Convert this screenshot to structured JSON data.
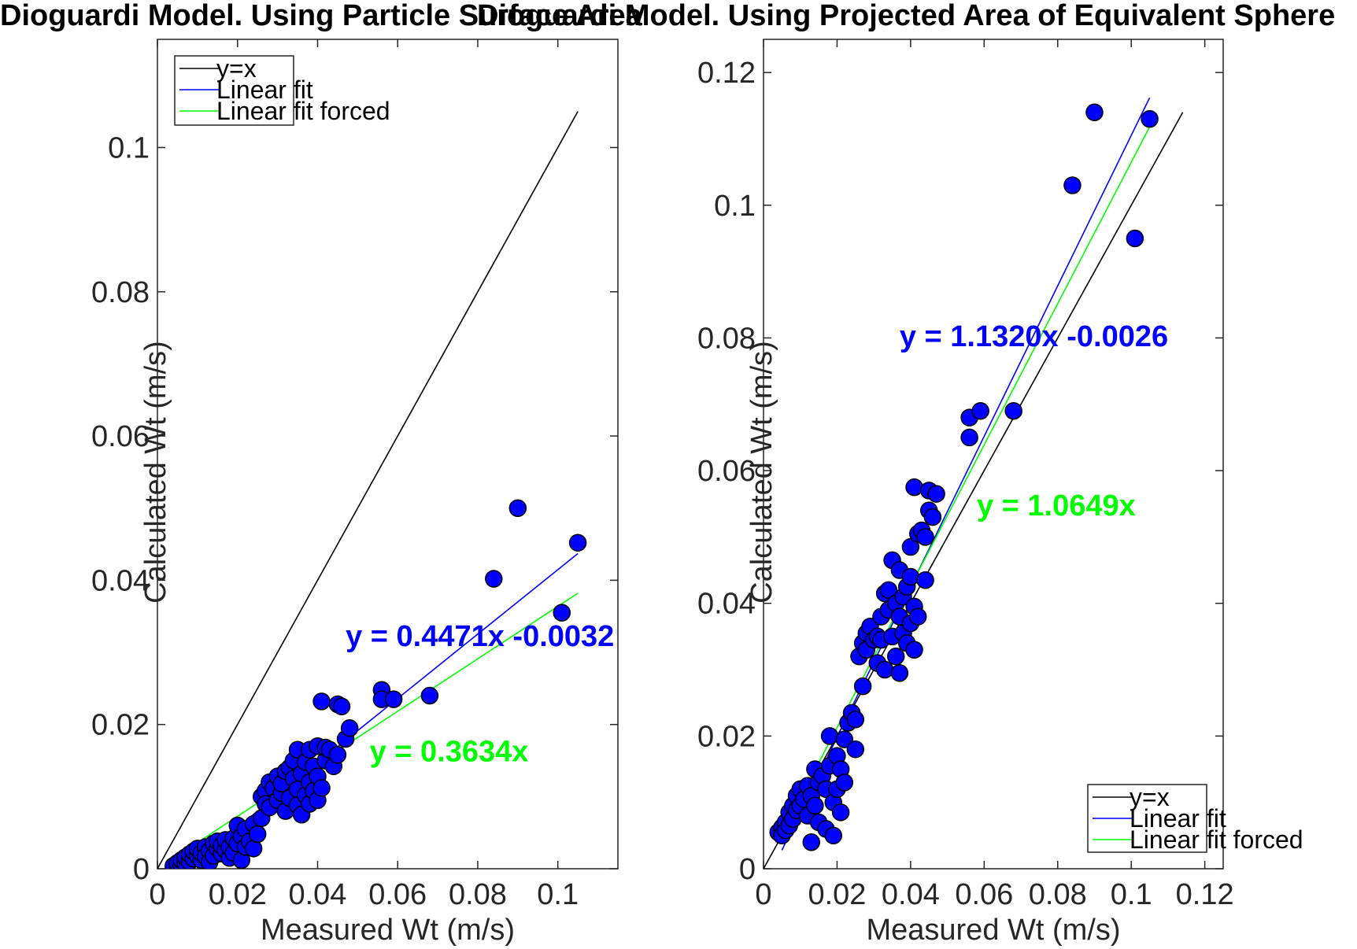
{
  "chart_data": [
    {
      "type": "scatter",
      "title": "Dioguardi Model. Using Particle Surface Area",
      "xlabel": "Measured Wt (m/s)",
      "ylabel": "Calculated Wt (m/s)",
      "xlim": [
        0,
        0.115
      ],
      "ylim": [
        0,
        0.115
      ],
      "xticks": [
        0,
        0.02,
        0.04,
        0.06,
        0.08,
        0.1
      ],
      "xtick_labels": [
        "0",
        "0.02",
        "0.04",
        "0.06",
        "0.08",
        "0.1"
      ],
      "yticks": [
        0,
        0.02,
        0.04,
        0.06,
        0.08,
        0.1
      ],
      "ytick_labels": [
        "0",
        "0.02",
        "0.04",
        "0.06",
        "0.08",
        "0.1"
      ],
      "grid": false,
      "legend_position": "top-left",
      "legend": [
        "y=x",
        "Linear fit",
        "Linear fit forced"
      ],
      "colors": {
        "identity": "#000000",
        "linear_fit": "#0000ff",
        "forced_fit": "#00ff00",
        "points": "#0000ff"
      },
      "lines": [
        {
          "name": "y=x",
          "color": "#000000",
          "points": [
            [
              0,
              0
            ],
            [
              0.105,
              0.105
            ]
          ]
        },
        {
          "name": "Linear fit",
          "color": "#0000ff",
          "points": [
            [
              0.004,
              -0.0014
            ],
            [
              0.105,
              0.0437
            ]
          ]
        },
        {
          "name": "Linear fit forced",
          "color": "#00ff00",
          "points": [
            [
              0.004,
              0.00145
            ],
            [
              0.105,
              0.0382
            ]
          ]
        }
      ],
      "annotations": [
        {
          "text": "y = 0.4471x -0.0032",
          "color": "#0000ff",
          "x": 0.047,
          "y": 0.0323
        },
        {
          "text": "y = 0.3634x",
          "color": "#00ff00",
          "x": 0.053,
          "y": 0.0163
        }
      ],
      "points": [
        [
          0.004,
          0.0004
        ],
        [
          0.005,
          0.0006
        ],
        [
          0.005,
          0.0008
        ],
        [
          0.006,
          0.0005
        ],
        [
          0.006,
          0.0012
        ],
        [
          0.007,
          0.0007
        ],
        [
          0.007,
          0.0016
        ],
        [
          0.008,
          0.001
        ],
        [
          0.008,
          0.002
        ],
        [
          0.009,
          0.0014
        ],
        [
          0.009,
          0.0024
        ],
        [
          0.01,
          0.0018
        ],
        [
          0.01,
          0.0028
        ],
        [
          0.011,
          0.0012
        ],
        [
          0.011,
          0.0022
        ],
        [
          0.012,
          0.003
        ],
        [
          0.012,
          0.0017
        ],
        [
          0.013,
          0.0025
        ],
        [
          0.013,
          0.0009
        ],
        [
          0.014,
          0.0035
        ],
        [
          0.014,
          0.0018
        ],
        [
          0.015,
          0.0028
        ],
        [
          0.015,
          0.0038
        ],
        [
          0.016,
          0.0021
        ],
        [
          0.016,
          0.0032
        ],
        [
          0.017,
          0.0026
        ],
        [
          0.017,
          0.004
        ],
        [
          0.018,
          0.0015
        ],
        [
          0.018,
          0.003
        ],
        [
          0.019,
          0.0042
        ],
        [
          0.019,
          0.0022
        ],
        [
          0.02,
          0.0035
        ],
        [
          0.02,
          0.006
        ],
        [
          0.021,
          0.0045
        ],
        [
          0.021,
          0.0012
        ],
        [
          0.022,
          0.003
        ],
        [
          0.022,
          0.0055
        ],
        [
          0.023,
          0.0038
        ],
        [
          0.024,
          0.0062
        ],
        [
          0.024,
          0.0028
        ],
        [
          0.025,
          0.0048
        ],
        [
          0.026,
          0.01
        ],
        [
          0.026,
          0.007
        ],
        [
          0.027,
          0.0108
        ],
        [
          0.027,
          0.009
        ],
        [
          0.028,
          0.012
        ],
        [
          0.028,
          0.0085
        ],
        [
          0.029,
          0.0112
        ],
        [
          0.03,
          0.0095
        ],
        [
          0.03,
          0.0128
        ],
        [
          0.031,
          0.0105
        ],
        [
          0.031,
          0.0118
        ],
        [
          0.032,
          0.0135
        ],
        [
          0.032,
          0.008
        ],
        [
          0.033,
          0.014
        ],
        [
          0.033,
          0.0098
        ],
        [
          0.034,
          0.0125
        ],
        [
          0.034,
          0.015
        ],
        [
          0.035,
          0.011
        ],
        [
          0.035,
          0.0088
        ],
        [
          0.035,
          0.0165
        ],
        [
          0.036,
          0.0132
        ],
        [
          0.036,
          0.0075
        ],
        [
          0.037,
          0.0148
        ],
        [
          0.037,
          0.0102
        ],
        [
          0.038,
          0.0165
        ],
        [
          0.038,
          0.012
        ],
        [
          0.038,
          0.009
        ],
        [
          0.039,
          0.0142
        ],
        [
          0.039,
          0.0108
        ],
        [
          0.04,
          0.017
        ],
        [
          0.04,
          0.0128
        ],
        [
          0.04,
          0.0095
        ],
        [
          0.041,
          0.0232
        ],
        [
          0.041,
          0.0112
        ],
        [
          0.042,
          0.015
        ],
        [
          0.042,
          0.0168
        ],
        [
          0.043,
          0.0165
        ],
        [
          0.044,
          0.0142
        ],
        [
          0.045,
          0.0158
        ],
        [
          0.045,
          0.0228
        ],
        [
          0.046,
          0.0225
        ],
        [
          0.047,
          0.018
        ],
        [
          0.048,
          0.0195
        ],
        [
          0.056,
          0.0248
        ],
        [
          0.056,
          0.0235
        ],
        [
          0.059,
          0.0235
        ],
        [
          0.068,
          0.024
        ],
        [
          0.084,
          0.0402
        ],
        [
          0.09,
          0.05
        ],
        [
          0.101,
          0.0355
        ],
        [
          0.105,
          0.0452
        ]
      ]
    },
    {
      "type": "scatter",
      "title": "Dioguardi Model. Using Projected Area of Equivalent Sphere",
      "xlabel": "Measured Wt (m/s)",
      "ylabel": "Calculated Wt (m/s)",
      "xlim": [
        0,
        0.125
      ],
      "ylim": [
        0,
        0.125
      ],
      "xticks": [
        0,
        0.02,
        0.04,
        0.06,
        0.08,
        0.1,
        0.12
      ],
      "xtick_labels": [
        "0",
        "0.02",
        "0.04",
        "0.06",
        "0.08",
        "0.1",
        "0.12"
      ],
      "yticks": [
        0,
        0.02,
        0.04,
        0.06,
        0.08,
        0.1,
        0.12
      ],
      "ytick_labels": [
        "0",
        "0.02",
        "0.04",
        "0.06",
        "0.08",
        "0.1",
        "0.12"
      ],
      "grid": false,
      "legend_position": "bottom-right",
      "legend": [
        "y=x",
        "Linear fit",
        "Linear fit forced"
      ],
      "colors": {
        "identity": "#000000",
        "linear_fit": "#0000ff",
        "forced_fit": "#00ff00",
        "points": "#0000ff"
      },
      "lines": [
        {
          "name": "y=x",
          "color": "#000000",
          "points": [
            [
              0,
              0
            ],
            [
              0.114,
              0.114
            ]
          ]
        },
        {
          "name": "Linear fit",
          "color": "#0000ff",
          "points": [
            [
              0.005,
              0.0028
            ],
            [
              0.105,
              0.1162
            ]
          ]
        },
        {
          "name": "Linear fit forced",
          "color": "#00ff00",
          "points": [
            [
              0.005,
              0.0053
            ],
            [
              0.105,
              0.1118
            ]
          ]
        }
      ],
      "annotations": [
        {
          "text": "y = 1.1320x -0.0026",
          "color": "#0000ff",
          "x": 0.037,
          "y": 0.0803
        },
        {
          "text": "y = 1.0649x",
          "color": "#00ff00",
          "x": 0.058,
          "y": 0.0548
        }
      ],
      "points": [
        [
          0.004,
          0.0055
        ],
        [
          0.005,
          0.0062
        ],
        [
          0.005,
          0.005
        ],
        [
          0.006,
          0.007
        ],
        [
          0.006,
          0.0058
        ],
        [
          0.007,
          0.0085
        ],
        [
          0.007,
          0.0065
        ],
        [
          0.008,
          0.0095
        ],
        [
          0.008,
          0.0075
        ],
        [
          0.009,
          0.011
        ],
        [
          0.009,
          0.0088
        ],
        [
          0.01,
          0.012
        ],
        [
          0.01,
          0.0095
        ],
        [
          0.011,
          0.0105
        ],
        [
          0.012,
          0.0125
        ],
        [
          0.012,
          0.008
        ],
        [
          0.013,
          0.011
        ],
        [
          0.013,
          0.004
        ],
        [
          0.014,
          0.015
        ],
        [
          0.014,
          0.0095
        ],
        [
          0.015,
          0.013
        ],
        [
          0.015,
          0.007
        ],
        [
          0.016,
          0.014
        ],
        [
          0.017,
          0.012
        ],
        [
          0.017,
          0.006
        ],
        [
          0.018,
          0.0155
        ],
        [
          0.018,
          0.02
        ],
        [
          0.019,
          0.01
        ],
        [
          0.019,
          0.005
        ],
        [
          0.02,
          0.017
        ],
        [
          0.02,
          0.012
        ],
        [
          0.021,
          0.015
        ],
        [
          0.021,
          0.0085
        ],
        [
          0.022,
          0.0195
        ],
        [
          0.022,
          0.013
        ],
        [
          0.023,
          0.022
        ],
        [
          0.024,
          0.0235
        ],
        [
          0.025,
          0.018
        ],
        [
          0.025,
          0.0225
        ],
        [
          0.026,
          0.032
        ],
        [
          0.027,
          0.034
        ],
        [
          0.027,
          0.0275
        ],
        [
          0.028,
          0.0355
        ],
        [
          0.028,
          0.033
        ],
        [
          0.029,
          0.0365
        ],
        [
          0.03,
          0.0345
        ],
        [
          0.031,
          0.035
        ],
        [
          0.031,
          0.031
        ],
        [
          0.032,
          0.038
        ],
        [
          0.032,
          0.0345
        ],
        [
          0.033,
          0.0415
        ],
        [
          0.033,
          0.03
        ],
        [
          0.034,
          0.039
        ],
        [
          0.034,
          0.042
        ],
        [
          0.035,
          0.035
        ],
        [
          0.035,
          0.0465
        ],
        [
          0.036,
          0.04
        ],
        [
          0.036,
          0.032
        ],
        [
          0.037,
          0.045
        ],
        [
          0.037,
          0.0295
        ],
        [
          0.037,
          0.038
        ],
        [
          0.038,
          0.041
        ],
        [
          0.038,
          0.0355
        ],
        [
          0.039,
          0.0425
        ],
        [
          0.039,
          0.034
        ],
        [
          0.04,
          0.044
        ],
        [
          0.04,
          0.037
        ],
        [
          0.04,
          0.0485
        ],
        [
          0.041,
          0.0575
        ],
        [
          0.041,
          0.033
        ],
        [
          0.041,
          0.0395
        ],
        [
          0.042,
          0.0505
        ],
        [
          0.042,
          0.038
        ],
        [
          0.043,
          0.051
        ],
        [
          0.044,
          0.0435
        ],
        [
          0.044,
          0.05
        ],
        [
          0.045,
          0.057
        ],
        [
          0.045,
          0.054
        ],
        [
          0.046,
          0.053
        ],
        [
          0.047,
          0.0565
        ],
        [
          0.056,
          0.065
        ],
        [
          0.056,
          0.068
        ],
        [
          0.059,
          0.069
        ],
        [
          0.068,
          0.069
        ],
        [
          0.084,
          0.103
        ],
        [
          0.09,
          0.114
        ],
        [
          0.101,
          0.095
        ],
        [
          0.105,
          0.113
        ]
      ]
    }
  ]
}
